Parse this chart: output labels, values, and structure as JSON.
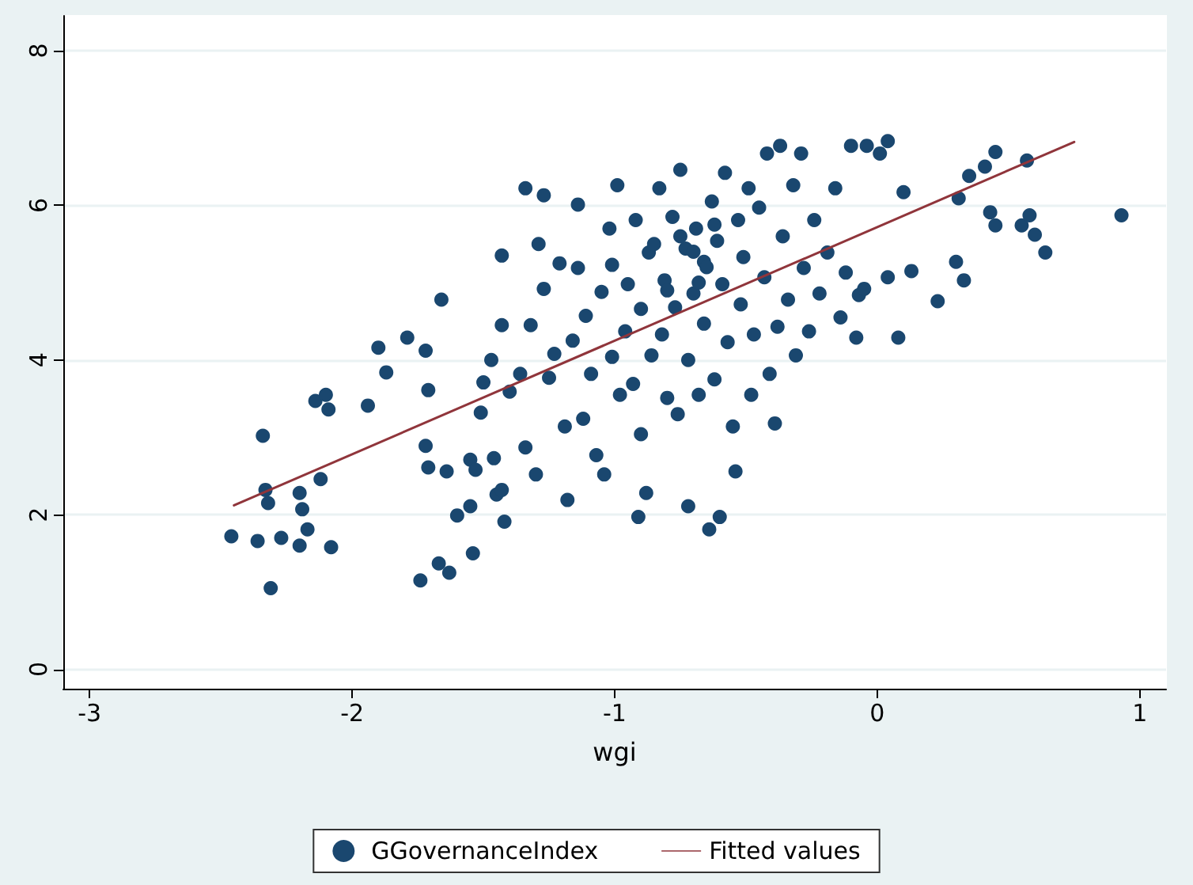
{
  "chart_data": {
    "type": "scatter",
    "xlabel": "wgi",
    "xlim": [
      -3.1,
      1.1
    ],
    "ylim": [
      -0.25,
      8.45
    ],
    "xticks": [
      -3,
      -2,
      -1,
      0,
      1
    ],
    "yticks": [
      0,
      2,
      4,
      6,
      8
    ],
    "grid": "y",
    "legend": "bottom",
    "marker": "circle",
    "series": [
      {
        "name": "GGovernanceIndex",
        "color": "#1a476f",
        "x": [
          -2.46,
          -2.36,
          -2.31,
          -2.34,
          -2.33,
          -2.32,
          -2.27,
          -2.2,
          -2.19,
          -2.17,
          -2.2,
          -2.12,
          -2.14,
          -2.1,
          -2.09,
          -2.08,
          -1.94,
          -1.9,
          -1.87,
          -1.79,
          -1.72,
          -1.71,
          -1.74,
          -1.72,
          -1.71,
          -1.67,
          -1.64,
          -1.66,
          -1.63,
          -1.6,
          -1.55,
          -1.55,
          -1.54,
          -1.53,
          -1.51,
          -1.5,
          -1.47,
          -1.46,
          -1.45,
          -1.43,
          -1.43,
          -1.43,
          -1.42,
          -1.4,
          -1.36,
          -1.34,
          -1.34,
          -1.32,
          -1.3,
          -1.29,
          -1.27,
          -1.27,
          -1.25,
          -1.23,
          -1.21,
          -1.19,
          -1.18,
          -1.16,
          -1.14,
          -1.14,
          -1.12,
          -1.11,
          -1.09,
          -1.07,
          -1.05,
          -1.04,
          -1.02,
          -1.01,
          -1.01,
          -0.99,
          -0.98,
          -0.96,
          -0.95,
          -0.93,
          -0.92,
          -0.9,
          -0.9,
          -0.91,
          -0.88,
          -0.87,
          -0.86,
          -0.83,
          -0.82,
          -0.81,
          -0.8,
          -0.78,
          -0.77,
          -0.76,
          -0.75,
          -0.73,
          -0.72,
          -0.72,
          -0.7,
          -0.69,
          -0.68,
          -0.66,
          -0.66,
          -0.64,
          -0.63,
          -0.62,
          -0.61,
          -0.6,
          -0.59,
          -0.58,
          -0.57,
          -0.55,
          -0.54,
          -0.53,
          -0.52,
          -0.51,
          -0.49,
          -0.48,
          -0.47,
          -0.45,
          -0.43,
          -0.42,
          -0.41,
          -0.39,
          -0.38,
          -0.37,
          -0.36,
          -0.34,
          -0.32,
          -0.31,
          -0.29,
          -0.28,
          -0.26,
          -0.24,
          -0.22,
          -0.19,
          -0.16,
          -0.14,
          -0.12,
          -0.1,
          -0.08,
          -0.07,
          -0.05,
          -0.04,
          0.01,
          0.04,
          0.04,
          0.08,
          0.1,
          0.13,
          0.23,
          0.3,
          0.31,
          0.33,
          0.35,
          0.41,
          0.43,
          0.45,
          0.45,
          0.55,
          0.57,
          0.58,
          0.6,
          0.64,
          0.93,
          -0.75,
          -0.7,
          -0.65,
          -0.62,
          -0.68,
          -0.8,
          -0.85
        ],
        "values": [
          1.72,
          1.66,
          1.05,
          3.02,
          2.32,
          2.15,
          1.7,
          1.6,
          2.07,
          1.81,
          2.28,
          2.46,
          3.47,
          3.55,
          3.36,
          1.58,
          3.41,
          4.16,
          3.84,
          4.29,
          4.12,
          3.61,
          1.15,
          2.89,
          2.61,
          1.37,
          2.56,
          4.78,
          1.25,
          1.99,
          2.11,
          2.71,
          1.5,
          2.58,
          3.32,
          3.71,
          4.0,
          2.73,
          2.26,
          4.45,
          5.35,
          2.32,
          1.91,
          3.59,
          3.82,
          6.22,
          2.87,
          4.45,
          2.52,
          5.5,
          6.13,
          4.92,
          3.77,
          4.08,
          5.25,
          3.14,
          2.19,
          4.25,
          5.19,
          6.01,
          3.24,
          4.57,
          3.82,
          2.77,
          4.88,
          2.52,
          5.7,
          4.04,
          5.23,
          6.26,
          3.55,
          4.37,
          4.98,
          3.69,
          5.81,
          3.04,
          4.66,
          1.97,
          2.28,
          5.39,
          4.06,
          6.22,
          4.33,
          5.03,
          3.51,
          5.85,
          4.68,
          3.3,
          6.46,
          5.44,
          4.0,
          2.11,
          4.86,
          5.7,
          3.55,
          4.47,
          5.27,
          1.81,
          6.05,
          3.75,
          5.54,
          1.97,
          4.98,
          6.42,
          4.23,
          3.14,
          2.56,
          5.81,
          4.72,
          5.33,
          6.22,
          3.55,
          4.33,
          5.97,
          5.07,
          6.67,
          3.82,
          3.18,
          4.43,
          6.77,
          5.6,
          4.78,
          6.26,
          4.06,
          6.67,
          5.19,
          4.37,
          5.81,
          4.86,
          5.39,
          6.22,
          4.55,
          5.13,
          6.77,
          4.29,
          4.84,
          4.92,
          6.77,
          6.67,
          6.83,
          5.07,
          4.29,
          6.17,
          5.15,
          4.76,
          5.27,
          6.09,
          5.03,
          6.38,
          6.5,
          5.91,
          6.69,
          5.74,
          5.74,
          6.58,
          5.87,
          5.62,
          5.39,
          5.87,
          5.6,
          5.4,
          5.2,
          5.75,
          5.0,
          4.9,
          5.5
        ]
      },
      {
        "name": "Fitted values",
        "type": "line",
        "color": "#90353b",
        "marker": "none",
        "x": [
          -2.45,
          0.75
        ],
        "values": [
          2.12,
          6.82
        ]
      }
    ]
  }
}
